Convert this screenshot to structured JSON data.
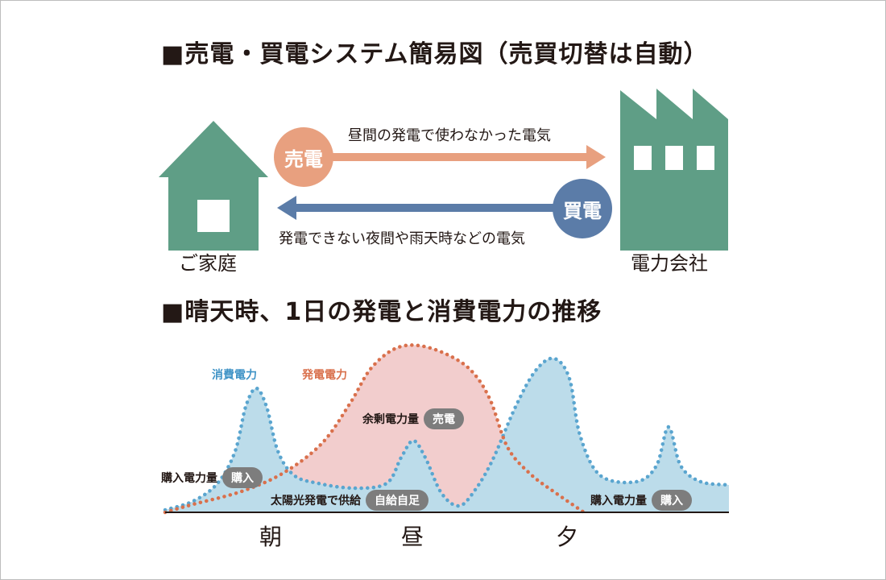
{
  "headings": {
    "system": "■売電・買電システム簡易図（売買切替は自動）",
    "daily": "■晴天時、1日の発電と消費電力の推移"
  },
  "system_diagram": {
    "home_label": "ご家庭",
    "company_label": "電力会社",
    "sell_badge": "売電",
    "buy_badge": "買電",
    "sell_text": "昼間の発電で使わなかった電気",
    "buy_text": "発電できない夜間や雨天時などの電気",
    "colors": {
      "building": "#5f9e86",
      "sell": "#e8a07f",
      "buy": "#5b7ca8"
    }
  },
  "chart_data": {
    "type": "area",
    "series": [
      {
        "name": "消費電力",
        "color": "#5aa5cf",
        "fill": "#bcdcea"
      },
      {
        "name": "発電電力",
        "color": "#d9704c",
        "fill": "#f2cdcd"
      }
    ],
    "annotations": {
      "purchase_morning": "購入電力量",
      "purchase_morning_tag": "購入",
      "surplus": "余剰電力量",
      "surplus_tag": "売電",
      "solar_supply": "太陽光発電で供給",
      "solar_supply_tag": "自給自足",
      "purchase_evening": "購入電力量",
      "purchase_evening_tag": "購入"
    },
    "x_labels": [
      "朝",
      "昼",
      "夕"
    ]
  }
}
